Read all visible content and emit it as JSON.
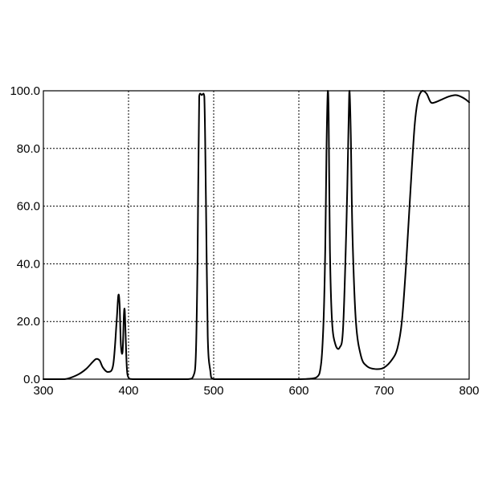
{
  "chart_data": {
    "type": "line",
    "title": "",
    "xlabel": "",
    "ylabel": "",
    "xlim": [
      300,
      800
    ],
    "ylim": [
      0,
      100
    ],
    "grid": true,
    "grid_style": "dotted",
    "x_ticks": [
      300,
      400,
      500,
      600,
      700,
      800
    ],
    "x_tick_labels": [
      "300",
      "400",
      "500",
      "600",
      "700",
      "800"
    ],
    "y_ticks": [
      0,
      20,
      40,
      60,
      80,
      100
    ],
    "y_tick_labels": [
      "0.0",
      "20.0",
      "40.0",
      "60.0",
      "80.0",
      "100.0"
    ],
    "line_color": "#000000",
    "series": [
      {
        "x": [
          300,
          325,
          340,
          350,
          358,
          362,
          366,
          370,
          376,
          382,
          386,
          388,
          389.5,
          391,
          393,
          394.5,
          395.5,
          396.5,
          398,
          400,
          405,
          420,
          450,
          470,
          476,
          479,
          481,
          483,
          486,
          489,
          491,
          493,
          496,
          500,
          520,
          560,
          600,
          620,
          626,
          629,
          631,
          632.5,
          634,
          635,
          636.5,
          639,
          643,
          648,
          652,
          656,
          658.5,
          659.5,
          661,
          663,
          667,
          673,
          680,
          690,
          700,
          710,
          716,
          721,
          726,
          731,
          736,
          740,
          745,
          750,
          755,
          760,
          768,
          776,
          784,
          790,
          796,
          800
        ],
        "y": [
          0,
          0,
          1.5,
          3.5,
          6,
          7,
          6.5,
          4,
          2.5,
          5,
          20,
          29,
          26,
          12,
          9.5,
          22,
          24,
          16,
          4,
          0.5,
          0,
          0,
          0,
          0,
          1,
          8,
          40,
          98,
          98.5,
          98,
          60,
          15,
          3,
          0,
          0,
          0,
          0,
          0.5,
          5,
          20,
          45,
          80,
          100,
          92,
          45,
          20,
          12,
          11,
          18,
          55,
          90,
          100,
          85,
          50,
          20,
          8,
          4.5,
          3.5,
          4,
          7,
          11,
          20,
          40,
          65,
          88,
          97,
          100,
          99,
          96,
          96,
          97,
          98,
          98.5,
          98,
          97,
          96
        ]
      }
    ]
  }
}
